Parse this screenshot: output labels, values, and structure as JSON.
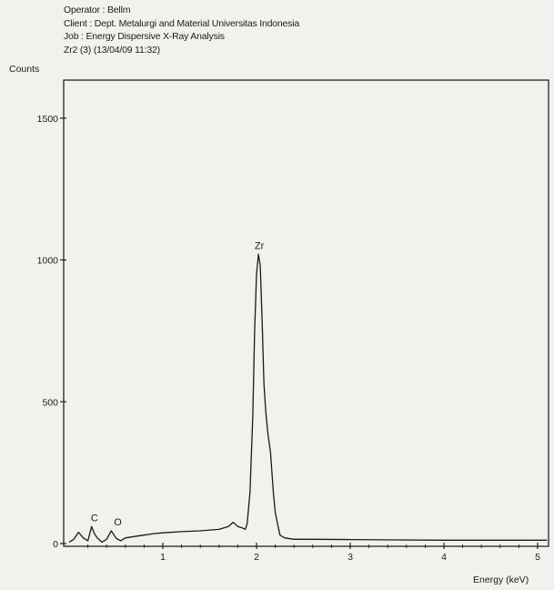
{
  "header": {
    "operator": "Operator : Bellm",
    "client": "Client : Dept. Metalurgi and Material Universitas Indonesia",
    "job": "Job : Energy Dispersive X-Ray Analysis",
    "sample": "Zr2 (3) (13/04/09 11:32)"
  },
  "chart_data": {
    "type": "line",
    "xlabel": "Energy (keV)",
    "ylabel": "Counts",
    "xlim": [
      0,
      5.1
    ],
    "ylim": [
      0,
      1500
    ],
    "xticks": [
      1,
      2,
      3,
      4,
      5
    ],
    "yticks": [
      0,
      500,
      1000,
      1500
    ],
    "grid": false,
    "series": [
      {
        "x": [
          0.0,
          0.05,
          0.1,
          0.15,
          0.2,
          0.24,
          0.27,
          0.3,
          0.35,
          0.4,
          0.45,
          0.5,
          0.52,
          0.55,
          0.6,
          0.7,
          0.8,
          0.9,
          1.0,
          1.2,
          1.4,
          1.6,
          1.7,
          1.75,
          1.8,
          1.85,
          1.88,
          1.9,
          1.93,
          1.96,
          1.98,
          2.0,
          2.02,
          2.04,
          2.06,
          2.08,
          2.1,
          2.12,
          2.15,
          2.18,
          2.2,
          2.23,
          2.25,
          2.3,
          2.4,
          2.6,
          3.0,
          3.5,
          4.0,
          4.5,
          5.0,
          5.1
        ],
        "y": [
          5,
          15,
          40,
          20,
          10,
          60,
          35,
          20,
          5,
          15,
          45,
          20,
          15,
          10,
          20,
          25,
          30,
          35,
          38,
          42,
          45,
          50,
          60,
          75,
          60,
          55,
          50,
          70,
          180,
          450,
          750,
          950,
          1020,
          980,
          780,
          560,
          460,
          390,
          320,
          180,
          110,
          60,
          30,
          20,
          15,
          15,
          14,
          13,
          12,
          12,
          12,
          12
        ]
      }
    ],
    "annotations": [
      {
        "label": "C",
        "x": 0.27,
        "y": 60
      },
      {
        "label": "O",
        "x": 0.52,
        "y": 45
      },
      {
        "label": "Zr",
        "x": 2.03,
        "y": 1020
      }
    ]
  }
}
